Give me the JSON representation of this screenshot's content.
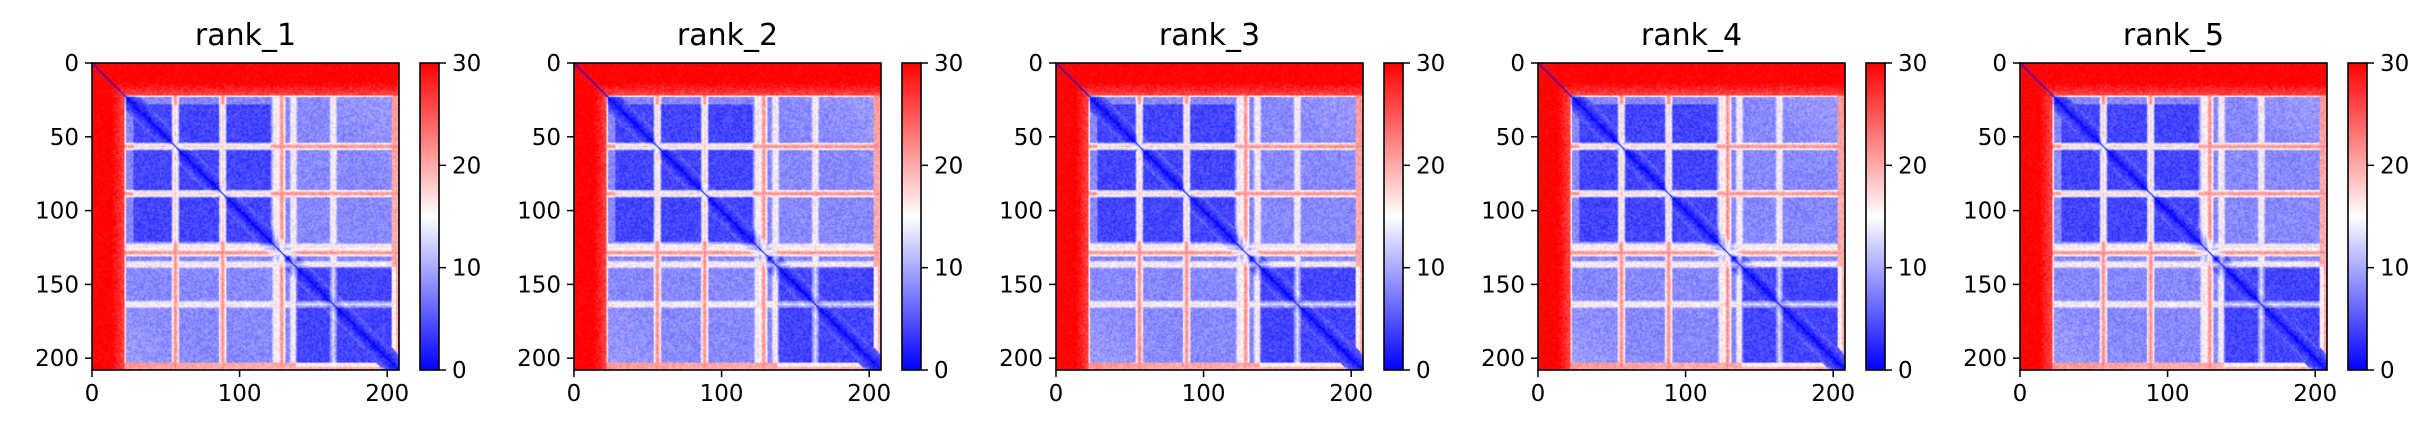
{
  "chart_data": [
    {
      "type": "heatmap",
      "title": "rank_1",
      "xlabel": "",
      "ylabel": "",
      "matrix_size": 208,
      "xticks": [
        0,
        100,
        200
      ],
      "yticks": [
        0,
        50,
        100,
        150,
        200
      ],
      "xlim": [
        0,
        208
      ],
      "ylim": [
        208,
        0
      ],
      "colorbar": {
        "colormap": "bwr",
        "min": 0,
        "max": 30,
        "ticks": [
          0,
          10,
          20,
          30
        ]
      },
      "red_bands": [
        20,
        56,
        88,
        128
      ],
      "white_bands": [
        124,
        136,
        163
      ],
      "blue_domains": [
        [
          28,
          120
        ],
        [
          138,
          205
        ]
      ],
      "diagonal_value": 0
    },
    {
      "type": "heatmap",
      "title": "rank_2",
      "xlabel": "",
      "ylabel": "",
      "matrix_size": 208,
      "xticks": [
        0,
        100,
        200
      ],
      "yticks": [
        0,
        50,
        100,
        150,
        200
      ],
      "xlim": [
        0,
        208
      ],
      "ylim": [
        208,
        0
      ],
      "colorbar": {
        "colormap": "bwr",
        "min": 0,
        "max": 30,
        "ticks": [
          0,
          10,
          20,
          30
        ]
      },
      "red_bands": [
        20,
        56,
        88,
        128
      ],
      "white_bands": [
        124,
        136,
        163
      ],
      "blue_domains": [
        [
          28,
          120
        ],
        [
          138,
          205
        ]
      ],
      "diagonal_value": 0
    },
    {
      "type": "heatmap",
      "title": "rank_3",
      "xlabel": "",
      "ylabel": "",
      "matrix_size": 208,
      "xticks": [
        0,
        100,
        200
      ],
      "yticks": [
        0,
        50,
        100,
        150,
        200
      ],
      "xlim": [
        0,
        208
      ],
      "ylim": [
        208,
        0
      ],
      "colorbar": {
        "colormap": "bwr",
        "min": 0,
        "max": 30,
        "ticks": [
          0,
          10,
          20,
          30
        ]
      },
      "red_bands": [
        20,
        56,
        88,
        128
      ],
      "white_bands": [
        124,
        136,
        163
      ],
      "blue_domains": [
        [
          28,
          120
        ],
        [
          138,
          205
        ]
      ],
      "diagonal_value": 0
    },
    {
      "type": "heatmap",
      "title": "rank_4",
      "xlabel": "",
      "ylabel": "",
      "matrix_size": 208,
      "xticks": [
        0,
        100,
        200
      ],
      "yticks": [
        0,
        50,
        100,
        150,
        200
      ],
      "xlim": [
        0,
        208
      ],
      "ylim": [
        208,
        0
      ],
      "colorbar": {
        "colormap": "bwr",
        "min": 0,
        "max": 30,
        "ticks": [
          0,
          10,
          20,
          30
        ]
      },
      "red_bands": [
        20,
        56,
        88,
        128
      ],
      "white_bands": [
        124,
        136,
        163
      ],
      "blue_domains": [
        [
          28,
          120
        ],
        [
          138,
          205
        ]
      ],
      "diagonal_value": 0
    },
    {
      "type": "heatmap",
      "title": "rank_5",
      "xlabel": "",
      "ylabel": "",
      "matrix_size": 208,
      "xticks": [
        0,
        100,
        200
      ],
      "yticks": [
        0,
        50,
        100,
        150,
        200
      ],
      "xlim": [
        0,
        208
      ],
      "ylim": [
        208,
        0
      ],
      "colorbar": {
        "colormap": "bwr",
        "min": 0,
        "max": 30,
        "ticks": [
          0,
          10,
          20,
          30
        ]
      },
      "red_bands": [
        20,
        56,
        88,
        128
      ],
      "white_bands": [
        124,
        136,
        163
      ],
      "blue_domains": [
        [
          28,
          120
        ],
        [
          138,
          205
        ]
      ],
      "diagonal_value": 0
    }
  ],
  "colors": {
    "low": "#0000ff",
    "mid": "#ffffff",
    "high": "#ff0000",
    "axis": "#000000",
    "background": "#ffffff"
  }
}
